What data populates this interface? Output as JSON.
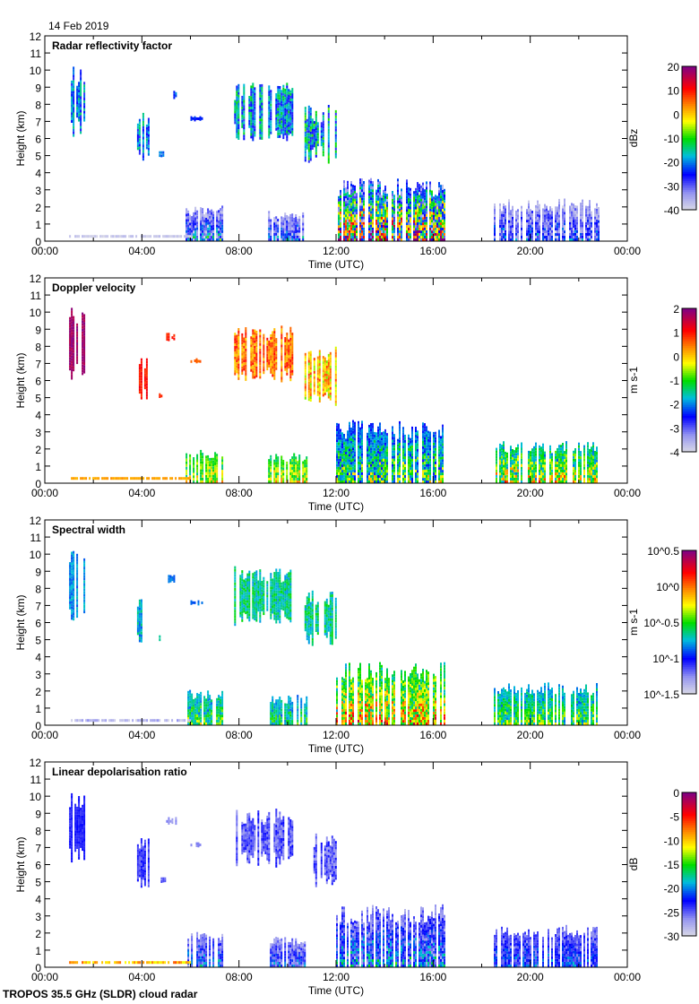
{
  "date": "14 Feb 2019",
  "footer": "TROPOS 35.5 GHz (SLDR) cloud radar",
  "chart_data": [
    {
      "type": "heatmap",
      "title": "Radar reflectivity factor",
      "xlabel": "Time (UTC)",
      "ylabel": "Height (km)",
      "xticks": [
        "00:00",
        "04:00",
        "08:00",
        "12:00",
        "16:00",
        "20:00",
        "00:00"
      ],
      "ylim": [
        0,
        12
      ],
      "yticks": [
        "0",
        "1",
        "2",
        "3",
        "4",
        "5",
        "6",
        "7",
        "8",
        "9",
        "10",
        "11",
        "12"
      ],
      "colorbar": {
        "unit": "dBz",
        "ticks": [
          "20",
          "10",
          "0",
          "-10",
          "-20",
          "-30",
          "-40"
        ],
        "range": [
          -40,
          20
        ]
      },
      "echo_ranges": [
        [
          0.2,
          0.45
        ],
        [
          0.2,
          0.45
        ],
        [
          0.3,
          0.35
        ],
        [
          0.25,
          0.35
        ],
        [
          0.25,
          0.3
        ],
        [
          0.2,
          0.5
        ],
        [
          0.2,
          0.55
        ],
        [
          0.0,
          1.0
        ],
        [
          0.0,
          0.45
        ],
        [
          0.0,
          0.4
        ],
        [
          0.0,
          0.35
        ],
        [
          0.0,
          0.05
        ]
      ]
    },
    {
      "type": "heatmap",
      "title": "Doppler velocity",
      "xlabel": "Time (UTC)",
      "ylabel": "Height (km)",
      "xticks": [
        "00:00",
        "04:00",
        "08:00",
        "12:00",
        "16:00",
        "20:00",
        "00:00"
      ],
      "ylim": [
        0,
        12
      ],
      "yticks": [
        "0",
        "1",
        "2",
        "3",
        "4",
        "5",
        "6",
        "7",
        "8",
        "9",
        "10",
        "11",
        "12"
      ],
      "colorbar": {
        "unit": "m s-1",
        "ticks": [
          "2",
          "1",
          "0",
          "-1",
          "-2",
          "-3",
          "-4"
        ],
        "range": [
          -4,
          2
        ]
      },
      "echo_ranges": [
        [
          0.93,
          1.0
        ],
        [
          0.8,
          0.88
        ],
        [
          0.8,
          0.85
        ],
        [
          0.8,
          0.85
        ],
        [
          0.75,
          0.8
        ],
        [
          0.65,
          0.85
        ],
        [
          0.55,
          0.8
        ],
        [
          0.2,
          0.65
        ],
        [
          0.4,
          0.7
        ],
        [
          0.4,
          0.7
        ],
        [
          0.3,
          0.75
        ],
        [
          0.68,
          0.72
        ]
      ]
    },
    {
      "type": "heatmap",
      "title": "Spectral width",
      "xlabel": "Time (UTC)",
      "ylabel": "Height (km)",
      "xticks": [
        "00:00",
        "04:00",
        "08:00",
        "12:00",
        "16:00",
        "20:00",
        "00:00"
      ],
      "ylim": [
        0,
        12
      ],
      "yticks": [
        "0",
        "1",
        "2",
        "3",
        "4",
        "5",
        "6",
        "7",
        "8",
        "9",
        "10",
        "11",
        "12"
      ],
      "colorbar": {
        "unit": "m s-1",
        "scale": "log",
        "ticks": [
          "10^0.5",
          "10^0",
          "10^-0.5",
          "10^-1",
          "10^-1.5"
        ],
        "range": [
          0.0316,
          3.16
        ]
      },
      "echo_ranges": [
        [
          0.3,
          0.4
        ],
        [
          0.3,
          0.45
        ],
        [
          0.4,
          0.45
        ],
        [
          0.3,
          0.35
        ],
        [
          0.3,
          0.35
        ],
        [
          0.35,
          0.5
        ],
        [
          0.35,
          0.5
        ],
        [
          0.35,
          0.85
        ],
        [
          0.3,
          0.6
        ],
        [
          0.3,
          0.55
        ],
        [
          0.3,
          0.6
        ],
        [
          0.0,
          0.1
        ]
      ]
    },
    {
      "type": "heatmap",
      "title": "Linear depolarisation ratio",
      "xlabel": "Time (UTC)",
      "ylabel": "Height (km)",
      "xticks": [
        "00:00",
        "04:00",
        "08:00",
        "12:00",
        "16:00",
        "20:00",
        "00:00"
      ],
      "ylim": [
        0,
        12
      ],
      "yticks": [
        "0",
        "1",
        "2",
        "3",
        "4",
        "5",
        "6",
        "7",
        "8",
        "9",
        "10",
        "11",
        "12"
      ],
      "colorbar": {
        "unit": "dB",
        "ticks": [
          "0",
          "-5",
          "-10",
          "-15",
          "-20",
          "-25",
          "-30"
        ],
        "range": [
          -30,
          0
        ]
      },
      "echo_ranges": [
        [
          0.2,
          0.25
        ],
        [
          0.15,
          0.25
        ],
        [
          0.15,
          0.2
        ],
        [
          0.1,
          0.15
        ],
        [
          0.1,
          0.15
        ],
        [
          0.1,
          0.25
        ],
        [
          0.1,
          0.25
        ],
        [
          0.05,
          0.45
        ],
        [
          0.05,
          0.4
        ],
        [
          0.05,
          0.35
        ],
        [
          0.1,
          0.35
        ],
        [
          0.6,
          0.75
        ]
      ]
    }
  ],
  "echo_regions_hours_km": [
    [
      1.0,
      1.6,
      6.0,
      10.3
    ],
    [
      3.8,
      4.3,
      4.6,
      7.6
    ],
    [
      4.7,
      4.95,
      4.9,
      5.3
    ],
    [
      5.0,
      5.4,
      8.3,
      8.8
    ],
    [
      6.0,
      6.5,
      7.0,
      7.3
    ],
    [
      7.8,
      10.2,
      5.8,
      9.3
    ],
    [
      10.7,
      12.0,
      4.5,
      8.0
    ],
    [
      12.0,
      16.5,
      0.0,
      3.7
    ],
    [
      5.8,
      7.3,
      0.0,
      2.1
    ],
    [
      9.2,
      10.8,
      0.0,
      1.8
    ],
    [
      18.5,
      22.8,
      0.0,
      2.5
    ],
    [
      1.0,
      6.0,
      0.2,
      0.4
    ]
  ]
}
